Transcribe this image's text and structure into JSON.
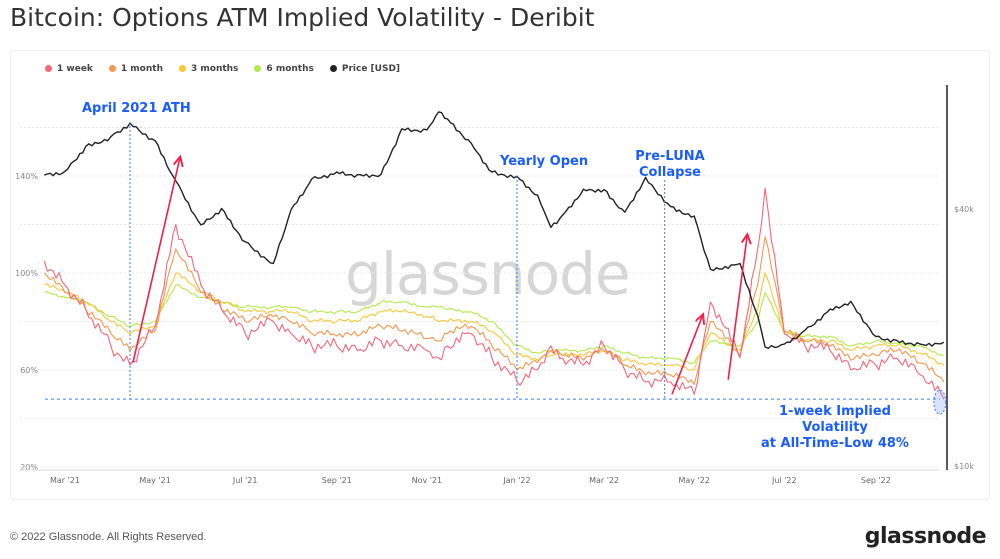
{
  "title": "Bitcoin: Options ATM Implied Volatility - Deribit",
  "footer": "© 2022 Glassnode. All Rights Reserved.",
  "logo": "glassnode",
  "watermark": "glassnode",
  "chart_data": {
    "type": "line",
    "title": "Bitcoin: Options ATM Implied Volatility - Deribit",
    "legend_position": "top-left",
    "grid": true,
    "x": [
      "2021-02-15",
      "2021-03-01",
      "2021-03-15",
      "2021-04-01",
      "2021-04-14",
      "2021-05-01",
      "2021-05-15",
      "2021-06-01",
      "2021-06-15",
      "2021-07-01",
      "2021-07-20",
      "2021-08-01",
      "2021-08-15",
      "2021-09-01",
      "2021-09-15",
      "2021-10-01",
      "2021-10-15",
      "2021-11-01",
      "2021-11-09",
      "2021-11-15",
      "2021-12-01",
      "2021-12-15",
      "2022-01-01",
      "2022-01-15",
      "2022-01-24",
      "2022-02-01",
      "2022-02-15",
      "2022-03-01",
      "2022-03-15",
      "2022-03-29",
      "2022-04-15",
      "2022-05-01",
      "2022-05-12",
      "2022-06-01",
      "2022-06-13",
      "2022-06-18",
      "2022-07-01",
      "2022-07-15",
      "2022-08-01",
      "2022-08-15",
      "2022-09-01",
      "2022-09-15",
      "2022-10-01",
      "2022-10-17"
    ],
    "x_ticks": [
      {
        "date": "2021-03-01",
        "label": "Mar '21"
      },
      {
        "date": "2021-05-01",
        "label": "May '21"
      },
      {
        "date": "2021-07-01",
        "label": "Jul '21"
      },
      {
        "date": "2021-09-01",
        "label": "Sep '21"
      },
      {
        "date": "2021-11-01",
        "label": "Nov '21"
      },
      {
        "date": "2022-01-01",
        "label": "Jan '22"
      },
      {
        "date": "2022-03-01",
        "label": "Mar '22"
      },
      {
        "date": "2022-05-01",
        "label": "May '22"
      },
      {
        "date": "2022-07-01",
        "label": "Jul '22"
      },
      {
        "date": "2022-09-01",
        "label": "Sep '22"
      }
    ],
    "y_left": {
      "unit": "%",
      "ylim": [
        20,
        160
      ],
      "ticks": [
        {
          "v": 20,
          "label": "20%"
        },
        {
          "v": 60,
          "label": "60%"
        },
        {
          "v": 100,
          "label": "100%"
        },
        {
          "v": 140,
          "label": "140%"
        }
      ]
    },
    "y_right": {
      "scale": "log",
      "ylim": [
        10000,
        80000
      ],
      "ticks": [
        {
          "v": 10000,
          "label": "$10k"
        },
        {
          "v": 40000,
          "label": "$40k"
        }
      ]
    },
    "series": [
      {
        "name": "1 week",
        "axis": "left",
        "color": "#f7667a",
        "values": [
          105,
          95,
          85,
          70,
          62,
          78,
          120,
          95,
          85,
          75,
          80,
          75,
          70,
          70,
          68,
          72,
          70,
          68,
          65,
          70,
          75,
          65,
          55,
          60,
          70,
          65,
          62,
          70,
          60,
          55,
          55,
          50,
          88,
          65,
          110,
          135,
          75,
          70,
          68,
          60,
          62,
          65,
          58,
          48
        ]
      },
      {
        "name": "1 month",
        "axis": "left",
        "color": "#f9964c",
        "values": [
          100,
          92,
          85,
          75,
          68,
          76,
          110,
          92,
          85,
          80,
          82,
          80,
          75,
          74,
          74,
          78,
          76,
          73,
          72,
          75,
          78,
          70,
          60,
          63,
          68,
          66,
          64,
          68,
          62,
          58,
          58,
          54,
          80,
          66,
          95,
          115,
          76,
          72,
          70,
          64,
          66,
          68,
          63,
          55
        ]
      },
      {
        "name": "3 months",
        "axis": "left",
        "color": "#f8c837",
        "values": [
          95,
          92,
          88,
          80,
          75,
          78,
          100,
          92,
          88,
          84,
          84,
          84,
          80,
          80,
          80,
          84,
          84,
          82,
          80,
          80,
          80,
          76,
          66,
          64,
          66,
          66,
          66,
          68,
          64,
          62,
          62,
          60,
          75,
          68,
          85,
          100,
          75,
          72,
          72,
          68,
          70,
          70,
          67,
          62
        ]
      },
      {
        "name": "6 months",
        "axis": "left",
        "color": "#b3e94a",
        "values": [
          92,
          90,
          88,
          82,
          78,
          80,
          95,
          90,
          88,
          86,
          86,
          86,
          84,
          84,
          84,
          88,
          88,
          86,
          86,
          85,
          84,
          80,
          70,
          67,
          68,
          68,
          68,
          70,
          67,
          65,
          65,
          63,
          72,
          70,
          80,
          92,
          76,
          74,
          74,
          70,
          72,
          71,
          70,
          66
        ]
      },
      {
        "name": "Price [USD]",
        "axis": "right",
        "color": "#222222",
        "values": [
          48000,
          49000,
          56000,
          59000,
          63500,
          57800,
          46500,
          36700,
          40100,
          33500,
          29800,
          39800,
          47000,
          48800,
          48100,
          48200,
          61600,
          61300,
          67500,
          65000,
          57000,
          48800,
          47700,
          43100,
          36200,
          38700,
          44500,
          44400,
          39300,
          47400,
          40500,
          38500,
          28900,
          29800,
          22500,
          19000,
          19300,
          20800,
          23300,
          24300,
          20100,
          19700,
          19300,
          19500
        ]
      }
    ],
    "annotations": [
      {
        "label": "April 2021 ATH",
        "date": "2021-04-14",
        "type": "vline"
      },
      {
        "label": "Yearly Open",
        "date": "2022-01-01",
        "type": "vline"
      },
      {
        "label": "Pre-LUNA Collapse",
        "date": "2022-04-11",
        "type": "vline"
      },
      {
        "label": "1-week Implied Volatility at All-Time-Low 48%",
        "value": 48,
        "date": "2022-10-17",
        "type": "hline"
      }
    ],
    "arrows": [
      {
        "from": {
          "date": "2021-04-16",
          "value": 63
        },
        "to": {
          "date": "2021-05-18",
          "value": 148
        }
      },
      {
        "from": {
          "date": "2022-04-16",
          "value": 50
        },
        "to": {
          "date": "2022-05-07",
          "value": 83
        }
      },
      {
        "from": {
          "date": "2022-05-24",
          "value": 56
        },
        "to": {
          "date": "2022-06-06",
          "value": 116
        }
      }
    ]
  },
  "annotation_text": {
    "ath": "April 2021 ATH",
    "yearly_open": "Yearly Open",
    "pre_luna_1": "Pre-LUNA",
    "pre_luna_2": "Collapse",
    "atl_1": "1-week Implied Volatility",
    "atl_2": "at All-Time-Low 48%"
  }
}
